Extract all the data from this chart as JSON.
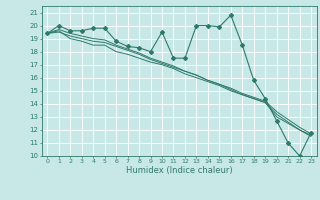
{
  "title": "",
  "xlabel": "Humidex (Indice chaleur)",
  "background_color": "#c8e8e8",
  "grid_color": "#ffffff",
  "line_color": "#2e7a6a",
  "xlim": [
    -0.5,
    23.5
  ],
  "ylim": [
    10,
    21.5
  ],
  "yticks": [
    10,
    11,
    12,
    13,
    14,
    15,
    16,
    17,
    18,
    19,
    20,
    21
  ],
  "xticks": [
    0,
    1,
    2,
    3,
    4,
    5,
    6,
    7,
    8,
    9,
    10,
    11,
    12,
    13,
    14,
    15,
    16,
    17,
    18,
    19,
    20,
    21,
    22,
    23
  ],
  "series": [
    [
      19.4,
      20.0,
      19.6,
      19.6,
      19.8,
      19.8,
      18.8,
      18.4,
      18.3,
      18.0,
      19.5,
      17.5,
      17.5,
      20.0,
      20.0,
      19.9,
      20.8,
      18.5,
      15.8,
      14.4,
      12.7,
      11.0,
      10.0,
      11.8
    ],
    [
      19.4,
      19.6,
      19.0,
      18.8,
      18.5,
      18.5,
      18.0,
      17.8,
      17.5,
      17.2,
      17.0,
      16.7,
      16.3,
      16.0,
      15.7,
      15.4,
      15.0,
      14.7,
      14.4,
      14.1,
      13.0,
      12.5,
      12.0,
      11.5
    ],
    [
      19.4,
      19.5,
      19.2,
      19.0,
      18.8,
      18.7,
      18.4,
      18.1,
      17.8,
      17.4,
      17.1,
      16.8,
      16.5,
      16.2,
      15.8,
      15.5,
      15.2,
      14.8,
      14.5,
      14.2,
      13.4,
      12.8,
      12.2,
      11.7
    ],
    [
      19.4,
      19.7,
      19.4,
      19.2,
      19.0,
      18.9,
      18.5,
      18.2,
      17.9,
      17.5,
      17.2,
      16.9,
      16.5,
      16.2,
      15.8,
      15.5,
      15.1,
      14.7,
      14.4,
      14.1,
      13.2,
      12.6,
      12.0,
      11.6
    ]
  ]
}
